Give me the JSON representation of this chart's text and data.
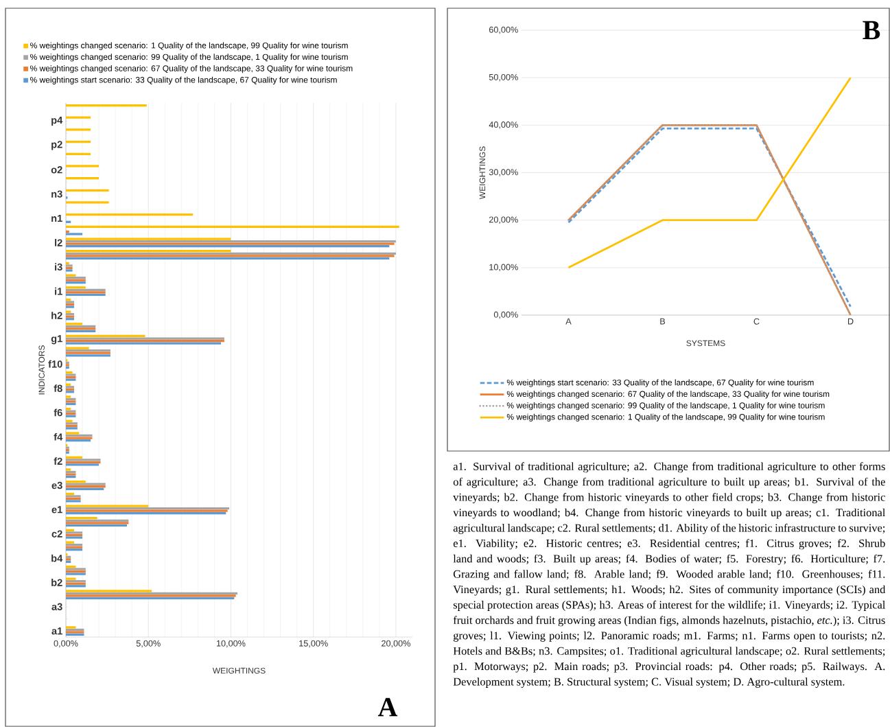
{
  "chart_data": [
    {
      "type": "bar",
      "orientation": "horizontal",
      "title": "A",
      "xlabel": "WEIGHTINGS",
      "ylabel": "INDICATORS",
      "grid": "x",
      "legend": "top",
      "categories": [
        null,
        "p4",
        null,
        "p2",
        null,
        "o2",
        null,
        "n3",
        null,
        "n1",
        null,
        "l2",
        null,
        "i3",
        null,
        "i1",
        null,
        "h2",
        null,
        "g1",
        null,
        "f10",
        null,
        "f8",
        null,
        "f6",
        null,
        "f4",
        null,
        "f2",
        null,
        "e3",
        null,
        "e1",
        null,
        "c2",
        null,
        "b4",
        null,
        "b2",
        null,
        "a3",
        null,
        "a1"
      ],
      "xlim": [
        0,
        21
      ],
      "xticks": [
        {
          "value": 0,
          "label": "0,00%"
        },
        {
          "value": 5,
          "label": "5,00%"
        },
        {
          "value": 10,
          "label": "10,00%"
        },
        {
          "value": 15,
          "label": "15,00%"
        },
        {
          "value": 20,
          "label": "20,00%"
        }
      ],
      "series": [
        {
          "name": "% weightings start scenario: 33 Quality of the landscape, 67 Quality for wine tourism",
          "color": "#5b9bd5",
          "values": [
            0,
            0,
            0,
            0,
            0,
            0,
            0,
            0.1,
            0,
            0.3,
            1.0,
            19.6,
            19.6,
            0.4,
            1.2,
            2.4,
            0.5,
            0.5,
            1.8,
            9.4,
            2.7,
            0.2,
            0.6,
            0.5,
            0.6,
            0.6,
            0.7,
            1.5,
            0.2,
            2.0,
            0.6,
            2.3,
            0.9,
            9.7,
            3.7,
            1.0,
            1.0,
            0.3,
            1.2,
            1.2,
            10.2,
            0,
            0,
            1.1
          ]
        },
        {
          "name": "% weightings changed scenario: 67 Quality of the landscape, 33 Quality for wine tourism",
          "color": "#ed7d31",
          "values": [
            0,
            0,
            0,
            0,
            0,
            0,
            0,
            0,
            0,
            0,
            0.2,
            19.9,
            19.9,
            0.4,
            1.2,
            2.4,
            0.5,
            0.5,
            1.8,
            9.6,
            2.7,
            0.2,
            0.6,
            0.5,
            0.6,
            0.6,
            0.7,
            1.6,
            0.2,
            2.1,
            0.6,
            2.4,
            0.9,
            9.8,
            3.8,
            1.0,
            1.0,
            0.3,
            1.2,
            1.2,
            10.3,
            0,
            0,
            1.1
          ]
        },
        {
          "name": "% weightings changed scenario: 99 Quality of the landscape, 1 Quality for wine tourism",
          "color": "#a5a5a5",
          "values": [
            0,
            0,
            0,
            0,
            0,
            0,
            0,
            0,
            0,
            0,
            0,
            20.0,
            20.0,
            0.4,
            1.2,
            2.4,
            0.5,
            0.5,
            1.8,
            9.6,
            2.7,
            0.2,
            0.6,
            0.5,
            0.6,
            0.6,
            0.7,
            1.6,
            0.2,
            2.1,
            0.6,
            2.4,
            0.9,
            9.9,
            3.8,
            1.0,
            1.0,
            0.3,
            1.2,
            1.2,
            10.4,
            0,
            0,
            1.1
          ]
        },
        {
          "name": "% weightings changed scenario: 1 Quality of the landscape, 99 Quality for wine tourism",
          "color": "#ffc000",
          "values": [
            4.9,
            1.5,
            1.5,
            1.5,
            1.5,
            2.0,
            2.0,
            2.6,
            2.6,
            7.7,
            20.2,
            10.0,
            10.0,
            0.2,
            0.6,
            1.2,
            0.3,
            0.3,
            1.0,
            4.8,
            1.4,
            0.1,
            0.4,
            0.3,
            0.3,
            0.3,
            0.4,
            0.8,
            0.1,
            1.0,
            0.3,
            1.2,
            0.5,
            5.0,
            1.9,
            0.5,
            0.5,
            0.1,
            0.6,
            0.6,
            5.2,
            0,
            0,
            0.6
          ]
        }
      ]
    },
    {
      "type": "line",
      "title": "B",
      "xlabel": "SYSTEMS",
      "ylabel": "WEIGHTINGS",
      "grid": "y",
      "legend": "bottom",
      "categories": [
        "A",
        "B",
        "C",
        "D"
      ],
      "ylim": [
        0,
        60
      ],
      "yticks": [
        {
          "value": 0,
          "label": "0,00%"
        },
        {
          "value": 10,
          "label": "10,00%"
        },
        {
          "value": 20,
          "label": "20,00%"
        },
        {
          "value": 30,
          "label": "30,00%"
        },
        {
          "value": 40,
          "label": "40,00%"
        },
        {
          "value": 50,
          "label": "50,00%"
        },
        {
          "value": 60,
          "label": "60,00%"
        }
      ],
      "series": [
        {
          "name": "% weightings start scenario: 33 Quality of the landscape, 67 Quality for wine tourism",
          "color": "#5b9bd5",
          "line_style": "dashed",
          "values": [
            19.5,
            39.3,
            39.3,
            1.8
          ]
        },
        {
          "name": "% weightings changed scenario: 67 Quality of the landscape, 33 Quality for wine tourism",
          "color": "#ed7d31",
          "line_style": "solid",
          "values": [
            20,
            40,
            40,
            0
          ]
        },
        {
          "name": "% weightings changed scenario: 99 Quality of the landscape, 1 Quality for wine tourism",
          "color": "#a5a5a5",
          "line_style": "dotted",
          "values": [
            20,
            40,
            40,
            0
          ]
        },
        {
          "name": "% weightings changed scenario: 1 Quality of the landscape, 99 Quality for wine tourism",
          "color": "#ffc000",
          "line_style": "solid",
          "values": [
            10,
            20,
            20,
            50
          ]
        }
      ],
      "annotations": [
        "a1. Survival of traditional agriculture; a2. Change from traditional agriculture to other forms of agriculture; a3. Change from traditional agriculture to built up areas; b1. Survival of the vineyards; b2. Change from historic vineyards to other field crops; b3. Change from historic vineyards to woodland; b4. Change from historic vineyards to built up areas; c1. Traditional agricultural landscape; c2. Rural settlements; d1. Ability of the historic infrastructure to survive; e1. Viability; e2. Historic centres; e3. Residential centres; f1. Citrus groves; f2. Shrub land and woods; f3. Built up areas; f4. Bodies of water; f5. Forestry; f6. Horticulture; f7. Grazing and fallow land; f8. Arable land; f9. Wooded arable land; f10. Greenhouses; f11. Vineyards; g1. Rural settlements; h1. Woods; h2. Sites of community importance (SCIs) and special protection areas (SPAs); h3. Areas of interest for the wildlife; i1. Vineyards; i2. Typical fruit orchards and fruit growing areas (Indian figs, almonds hazelnuts, pistachio, *etc.*); i3. Citrus groves; l1. Viewing points; l2. Panoramic roads; m1. Farms; n1. Farms open to tourists; n2. Hotels and B&Bs; n3. Campsites; o1. Traditional agricultural landscape; o2. Rural settlements; p1. Motorways; p2. Main roads; p3. Provincial roads: p4. Other roads; p5. Railways. A. Development system; B. Structural system; C. Visual system; D. Agro-cultural system."
      ]
    }
  ]
}
